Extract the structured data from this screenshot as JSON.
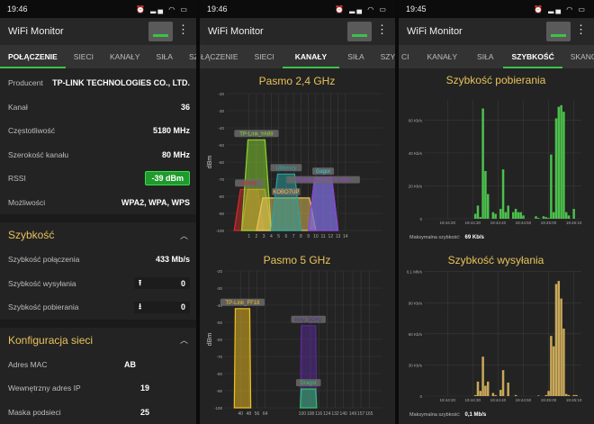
{
  "app_title": "WiFi Monitor",
  "accent_color": "#3cc24a",
  "section_color": "#e8c35a",
  "screens": [
    {
      "time": "19:46",
      "tabs": [
        "POŁĄCZENIE",
        "SIECI",
        "KANAŁY",
        "SIŁA",
        "SZYBKOŚĆ"
      ],
      "active_tab": "POŁĄCZENIE",
      "connection": [
        {
          "label": "Producent",
          "value": "TP-LINK TECHNOLOGIES CO., LTD."
        },
        {
          "label": "Kanał",
          "value": "36"
        },
        {
          "label": "Częstotliwość",
          "value": "5180 MHz"
        },
        {
          "label": "Szerokość kanału",
          "value": "80 MHz"
        },
        {
          "label": "RSSI",
          "value": "-39 dBm"
        },
        {
          "label": "Możliwości",
          "value": "WPA2, WPA, WPS"
        }
      ],
      "speed_section": {
        "title": "Szybkość",
        "link_label": "Szybkość połączenia",
        "link_value": "433 Mb/s",
        "upload_label": "Szybkość wysyłania",
        "upload_value": "0",
        "download_label": "Szybkość pobierania",
        "download_value": "0"
      },
      "network_section": {
        "title": "Konfiguracja sieci",
        "rows": [
          {
            "label": "Adres MAC",
            "value": "AB"
          },
          {
            "label": "Wewnętrzny adres IP",
            "value": "19"
          },
          {
            "label": "Maska podsieci",
            "value": "25"
          }
        ]
      }
    },
    {
      "time": "19:46",
      "tabs": [
        "ŁĄCZENIE",
        "SIECI",
        "KANAŁY",
        "SIŁA",
        "SZYBKOŚĆ"
      ],
      "active_tab": "KANAŁY"
    },
    {
      "time": "19:45",
      "tabs": [
        "CI",
        "KANAŁY",
        "SIŁA",
        "SZYBKOŚĆ",
        "SKANOWANIE"
      ],
      "active_tab": "SZYBKOŚĆ"
    }
  ],
  "chart_data": [
    {
      "type": "area",
      "title": "Pasmo 2,4 GHz",
      "ylabel": "dBm",
      "ylim": [
        -100,
        -20
      ],
      "yticks": [
        -20,
        -30,
        -40,
        -50,
        -60,
        -70,
        -80,
        -90,
        -100
      ],
      "xlim": [
        -2,
        19
      ],
      "xticks": [
        1,
        2,
        3,
        4,
        5,
        6,
        7,
        8,
        9,
        10,
        11,
        12,
        13,
        14
      ],
      "grid": true,
      "networks": [
        {
          "ssid": "Bletitb",
          "channel": 1,
          "width_mhz": 20,
          "dbm": -76,
          "color": "#d42a2a"
        },
        {
          "ssid": "",
          "channel": 2,
          "width_mhz": 20,
          "dbm": -76,
          "color": "#e8702a"
        },
        {
          "ssid": "TP-Link_hh88",
          "channel": 2,
          "width_mhz": 20,
          "dbm": -47,
          "color": "#8bd630"
        },
        {
          "ssid": "KOBO7UP",
          "channel": 6,
          "width_mhz": 40,
          "dbm": -81,
          "color": "#e8c35a"
        },
        {
          "ssid": "Uliboszy",
          "channel": 6,
          "width_mhz": 20,
          "dbm": -67,
          "color": "#2aa3a3"
        },
        {
          "ssid": "Gagor",
          "channel": 11,
          "width_mhz": 20,
          "dbm": -69,
          "color": "#3cd0e0"
        },
        {
          "ssid": "Wakarcia 2.4GHz sieci",
          "channel": 11,
          "width_mhz": 20,
          "dbm": -69,
          "color": "#9a3ad6"
        }
      ]
    },
    {
      "type": "area",
      "title": "Pasmo 5 GHz",
      "ylabel": "dBm",
      "ylim": [
        -100,
        -20
      ],
      "yticks": [
        -20,
        -30,
        -40,
        -50,
        -60,
        -70,
        -80,
        -90,
        -100
      ],
      "xlim": [
        25,
        177
      ],
      "xticks": [
        40,
        48,
        56,
        64,
        100,
        108,
        116,
        124,
        132,
        140,
        149,
        157,
        165
      ],
      "grid": true,
      "networks": [
        {
          "ssid": "TP-Link_FF18",
          "channel": 42,
          "width_mhz": 80,
          "dbm": -42,
          "color": "#f0c020"
        },
        {
          "ssid": "Inny_5GHz",
          "channel": 106,
          "width_mhz": 80,
          "dbm": -52,
          "color": "#5a2a9a"
        },
        {
          "ssid": "Dragor",
          "channel": 106,
          "width_mhz": 80,
          "dbm": -89,
          "color": "#2ec46a"
        }
      ]
    },
    {
      "type": "bar",
      "title": "Szybkość pobierania",
      "ylim": [
        0,
        72
      ],
      "yticks": [
        {
          "v": 0,
          "label": "0"
        },
        {
          "v": 20,
          "label": "20 Kb/s"
        },
        {
          "v": 40,
          "label": "40 Kb/s"
        },
        {
          "v": 60,
          "label": "60 Kb/s"
        }
      ],
      "xlim": [
        "19:44:11",
        "19:45:13"
      ],
      "xticks": [
        "19:44:20",
        "19:44:30",
        "19:44:40",
        "19:44:50",
        "19:45:00",
        "19:45:10"
      ],
      "color": "#4cc04c",
      "max_label": "Maksymalna szybkość:",
      "max_value": "69 Kb/s",
      "x": [
        "19:44:31",
        "19:44:32",
        "19:44:33",
        "19:44:34",
        "19:44:35",
        "19:44:36",
        "19:44:38",
        "19:44:39",
        "19:44:41",
        "19:44:42",
        "19:44:43",
        "19:44:44",
        "19:44:46",
        "19:44:47",
        "19:44:48",
        "19:44:49",
        "19:44:50",
        "19:44:55",
        "19:44:56",
        "19:44:58",
        "19:44:59",
        "19:45:00",
        "19:45:01",
        "19:45:02",
        "19:45:03",
        "19:45:04",
        "19:45:05",
        "19:45:06",
        "19:45:07",
        "19:45:08",
        "19:45:10"
      ],
      "values": [
        3,
        8,
        1,
        67,
        29,
        15,
        4,
        3,
        6,
        30,
        4,
        8,
        4,
        6,
        4,
        4,
        2,
        1.5,
        0.5,
        1.5,
        1,
        0.5,
        39,
        4,
        61,
        68,
        69,
        65,
        4,
        2,
        6
      ]
    },
    {
      "type": "bar",
      "title": "Szybkość wysyłania",
      "ylim": [
        0,
        120
      ],
      "yticks": [
        {
          "v": 0,
          "label": "0"
        },
        {
          "v": 30,
          "label": "30 Kb/s"
        },
        {
          "v": 60,
          "label": "60 Kb/s"
        },
        {
          "v": 90,
          "label": "90 Kb/s"
        },
        {
          "v": 120,
          "label": "0,1 Mb/s"
        }
      ],
      "xlim": [
        "19:44:11",
        "19:45:13"
      ],
      "xticks": [
        "19:44:20",
        "19:44:30",
        "19:44:40",
        "19:44:50",
        "19:45:00",
        "19:45:10"
      ],
      "color": "#c9a85a",
      "max_label": "Maksymalna szybkość:",
      "max_value": "0,1 Mb/s",
      "x": [
        "19:44:31",
        "19:44:32",
        "19:44:33",
        "19:44:34",
        "19:44:35",
        "19:44:36",
        "19:44:38",
        "19:44:39",
        "19:44:41",
        "19:44:42",
        "19:44:44",
        "19:44:47",
        "19:44:56",
        "19:44:59",
        "19:45:00",
        "19:45:01",
        "19:45:02",
        "19:45:03",
        "19:45:04",
        "19:45:05",
        "19:45:06",
        "19:45:07",
        "19:45:08",
        "19:45:10",
        "19:45:11"
      ],
      "values": [
        1,
        14,
        5,
        38,
        10,
        14,
        3,
        1,
        6,
        25,
        13,
        1,
        0.5,
        1,
        5,
        58,
        48,
        108,
        111,
        94,
        65,
        2,
        1,
        1,
        1
      ]
    }
  ]
}
